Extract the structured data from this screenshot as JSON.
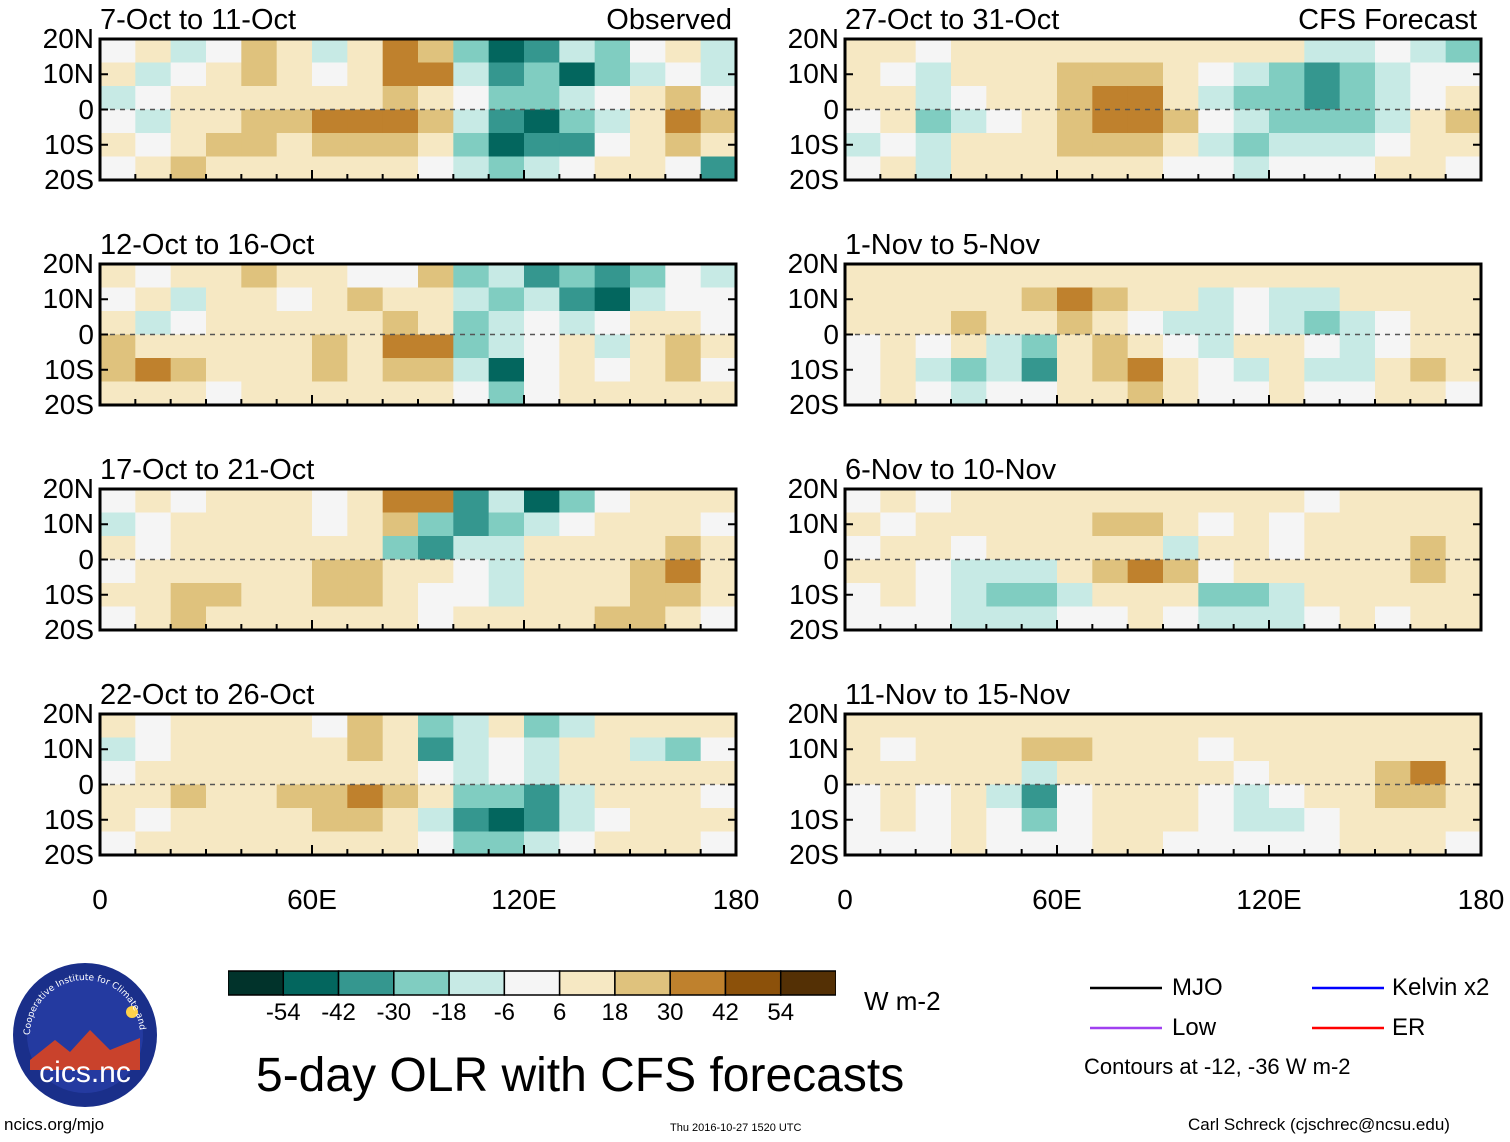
{
  "chart_data": {
    "type": "heatmap",
    "title": "5-day OLR with CFS forecasts",
    "columns": [
      {
        "label": "Observed"
      },
      {
        "label": "CFS Forecast"
      }
    ],
    "panels": [
      {
        "title": "7-Oct to 11-Oct",
        "source": "Observed",
        "cells": [
          [
            0,
            1,
            -1,
            0,
            2,
            1,
            -1,
            1,
            3,
            2,
            -2,
            -4,
            -3,
            -1,
            -2,
            0,
            1,
            -1
          ],
          [
            1,
            -1,
            0,
            1,
            2,
            1,
            0,
            1,
            3,
            3,
            -1,
            -3,
            -2,
            -4,
            -2,
            -1,
            0,
            -1
          ],
          [
            -1,
            0,
            1,
            1,
            1,
            1,
            1,
            1,
            2,
            1,
            0,
            -2,
            -2,
            -1,
            0,
            1,
            2,
            0
          ],
          [
            0,
            -1,
            1,
            1,
            2,
            2,
            3,
            3,
            3,
            2,
            -1,
            -3,
            -4,
            -2,
            -1,
            1,
            3,
            2
          ],
          [
            1,
            0,
            1,
            2,
            2,
            1,
            2,
            2,
            2,
            1,
            -2,
            -4,
            -3,
            -3,
            0,
            1,
            2,
            1
          ],
          [
            0,
            1,
            2,
            1,
            1,
            1,
            1,
            1,
            1,
            0,
            -1,
            -2,
            -1,
            0,
            1,
            1,
            0,
            -3
          ]
        ]
      },
      {
        "title": "12-Oct to 16-Oct",
        "source": "Observed",
        "cells": [
          [
            1,
            0,
            1,
            1,
            2,
            1,
            1,
            0,
            0,
            2,
            -2,
            -1,
            -3,
            -2,
            -3,
            -2,
            0,
            -1
          ],
          [
            0,
            1,
            -1,
            1,
            1,
            0,
            1,
            2,
            1,
            1,
            -1,
            -2,
            -1,
            -3,
            -4,
            -1,
            0,
            0
          ],
          [
            1,
            -1,
            0,
            1,
            1,
            1,
            1,
            1,
            2,
            1,
            -2,
            -1,
            0,
            -1,
            0,
            1,
            1,
            0
          ],
          [
            2,
            1,
            1,
            1,
            1,
            1,
            2,
            1,
            3,
            3,
            -2,
            -1,
            0,
            1,
            -1,
            1,
            2,
            1
          ],
          [
            2,
            3,
            2,
            1,
            1,
            1,
            2,
            1,
            2,
            2,
            -1,
            -4,
            0,
            1,
            0,
            1,
            2,
            0
          ],
          [
            1,
            1,
            1,
            0,
            1,
            1,
            1,
            1,
            1,
            1,
            0,
            -2,
            0,
            1,
            1,
            1,
            1,
            1
          ]
        ]
      },
      {
        "title": "17-Oct to 21-Oct",
        "source": "Observed",
        "cells": [
          [
            0,
            1,
            0,
            1,
            1,
            1,
            0,
            1,
            3,
            3,
            -3,
            -1,
            -4,
            -2,
            0,
            1,
            1,
            1
          ],
          [
            -1,
            0,
            1,
            1,
            1,
            1,
            0,
            1,
            2,
            -2,
            -3,
            -2,
            -1,
            0,
            1,
            1,
            1,
            0
          ],
          [
            1,
            0,
            1,
            1,
            1,
            1,
            1,
            1,
            -2,
            -3,
            -1,
            -1,
            1,
            1,
            1,
            1,
            2,
            1
          ],
          [
            0,
            1,
            1,
            1,
            1,
            1,
            2,
            2,
            1,
            1,
            0,
            -1,
            1,
            1,
            1,
            2,
            3,
            1
          ],
          [
            1,
            1,
            2,
            2,
            1,
            1,
            2,
            2,
            1,
            0,
            0,
            -1,
            1,
            1,
            1,
            2,
            2,
            1
          ],
          [
            0,
            1,
            2,
            1,
            1,
            1,
            1,
            1,
            1,
            0,
            1,
            1,
            1,
            1,
            2,
            2,
            1,
            0
          ]
        ]
      },
      {
        "title": "22-Oct to 26-Oct",
        "source": "Observed",
        "cells": [
          [
            1,
            0,
            1,
            1,
            1,
            1,
            0,
            2,
            1,
            -2,
            -1,
            1,
            -2,
            -1,
            1,
            1,
            1,
            1
          ],
          [
            -1,
            0,
            1,
            1,
            1,
            1,
            1,
            2,
            1,
            -3,
            -1,
            0,
            -1,
            1,
            1,
            -1,
            -2,
            0
          ],
          [
            0,
            1,
            1,
            1,
            1,
            1,
            1,
            1,
            1,
            0,
            -1,
            0,
            -1,
            1,
            1,
            1,
            1,
            1
          ],
          [
            1,
            1,
            2,
            1,
            1,
            2,
            2,
            3,
            2,
            1,
            -2,
            -2,
            -3,
            -1,
            1,
            1,
            1,
            0
          ],
          [
            1,
            0,
            1,
            1,
            1,
            1,
            2,
            2,
            1,
            -1,
            -3,
            -4,
            -3,
            -1,
            0,
            1,
            1,
            1
          ],
          [
            0,
            1,
            1,
            1,
            1,
            1,
            1,
            1,
            1,
            0,
            -2,
            -2,
            -1,
            0,
            1,
            1,
            1,
            0
          ]
        ]
      },
      {
        "title": "27-Oct to 31-Oct",
        "source": "CFS Forecast",
        "cells": [
          [
            1,
            1,
            0,
            1,
            1,
            1,
            1,
            1,
            1,
            1,
            1,
            1,
            1,
            -1,
            -1,
            0,
            -1,
            -2
          ],
          [
            1,
            0,
            -1,
            1,
            1,
            1,
            2,
            2,
            2,
            1,
            0,
            -1,
            -2,
            -3,
            -2,
            -1,
            0,
            0
          ],
          [
            1,
            1,
            -1,
            0,
            1,
            1,
            2,
            3,
            3,
            1,
            -1,
            -2,
            -2,
            -3,
            -2,
            -1,
            0,
            1
          ],
          [
            0,
            1,
            -2,
            -1,
            0,
            1,
            2,
            3,
            3,
            2,
            0,
            -1,
            -2,
            -2,
            -2,
            -1,
            1,
            2
          ],
          [
            -1,
            0,
            -1,
            1,
            1,
            1,
            2,
            2,
            2,
            1,
            -1,
            -2,
            -1,
            -1,
            -1,
            0,
            1,
            1
          ],
          [
            0,
            1,
            -1,
            1,
            1,
            1,
            1,
            1,
            1,
            0,
            0,
            -1,
            0,
            0,
            0,
            1,
            1,
            0
          ]
        ]
      },
      {
        "title": "1-Nov to 5-Nov",
        "source": "CFS Forecast",
        "cells": [
          [
            1,
            1,
            1,
            1,
            1,
            1,
            1,
            1,
            1,
            1,
            1,
            1,
            1,
            1,
            1,
            1,
            1,
            1
          ],
          [
            1,
            1,
            1,
            1,
            1,
            2,
            3,
            2,
            1,
            1,
            -1,
            0,
            -1,
            -1,
            1,
            1,
            1,
            1
          ],
          [
            1,
            1,
            1,
            2,
            1,
            1,
            2,
            1,
            0,
            -1,
            -1,
            0,
            -1,
            -2,
            -1,
            0,
            1,
            1
          ],
          [
            0,
            1,
            0,
            1,
            -1,
            -2,
            1,
            2,
            1,
            0,
            -1,
            1,
            1,
            0,
            -1,
            0,
            1,
            1
          ],
          [
            0,
            1,
            -1,
            -2,
            -1,
            -3,
            1,
            2,
            3,
            1,
            0,
            -1,
            1,
            -1,
            -1,
            1,
            2,
            1
          ],
          [
            0,
            1,
            0,
            -1,
            0,
            0,
            1,
            1,
            2,
            1,
            0,
            0,
            1,
            0,
            0,
            1,
            1,
            0
          ]
        ]
      },
      {
        "title": "6-Nov to 10-Nov",
        "source": "CFS Forecast",
        "cells": [
          [
            0,
            1,
            0,
            1,
            1,
            1,
            1,
            1,
            1,
            1,
            1,
            1,
            1,
            0,
            1,
            1,
            1,
            1
          ],
          [
            1,
            0,
            1,
            1,
            1,
            1,
            1,
            2,
            2,
            1,
            0,
            1,
            0,
            1,
            1,
            1,
            1,
            1
          ],
          [
            0,
            1,
            1,
            0,
            1,
            1,
            1,
            1,
            1,
            -1,
            1,
            1,
            0,
            1,
            1,
            1,
            2,
            1
          ],
          [
            1,
            1,
            0,
            -1,
            -1,
            -1,
            1,
            2,
            3,
            2,
            0,
            1,
            1,
            1,
            1,
            1,
            2,
            1
          ],
          [
            0,
            1,
            0,
            -1,
            -2,
            -2,
            -1,
            1,
            1,
            1,
            -2,
            -2,
            -1,
            1,
            1,
            1,
            1,
            1
          ],
          [
            0,
            0,
            0,
            -1,
            -1,
            -1,
            0,
            0,
            1,
            0,
            -1,
            -1,
            -1,
            0,
            1,
            0,
            1,
            1
          ]
        ]
      },
      {
        "title": "11-Nov to 15-Nov",
        "source": "CFS Forecast",
        "cells": [
          [
            1,
            1,
            1,
            1,
            1,
            1,
            1,
            1,
            1,
            1,
            1,
            1,
            1,
            1,
            1,
            1,
            1,
            1
          ],
          [
            1,
            0,
            1,
            1,
            1,
            2,
            2,
            1,
            1,
            1,
            0,
            1,
            1,
            1,
            1,
            1,
            1,
            1
          ],
          [
            1,
            1,
            1,
            1,
            1,
            -1,
            1,
            1,
            1,
            1,
            1,
            0,
            1,
            1,
            1,
            2,
            3,
            1
          ],
          [
            0,
            1,
            0,
            1,
            -1,
            -3,
            0,
            1,
            1,
            1,
            0,
            -1,
            0,
            1,
            1,
            2,
            2,
            1
          ],
          [
            0,
            1,
            0,
            1,
            0,
            -2,
            0,
            1,
            1,
            1,
            0,
            -1,
            -1,
            0,
            1,
            1,
            1,
            1
          ],
          [
            0,
            0,
            0,
            1,
            0,
            0,
            0,
            1,
            1,
            0,
            0,
            0,
            0,
            0,
            1,
            1,
            1,
            0
          ]
        ]
      }
    ],
    "cell_index_note": "cells[row][col] are colour-class indices (-5..5) into colorbar.colors; rows run 20N to 20S, columns 0 to 180",
    "x_axis": {
      "ticks": [
        "0",
        "60E",
        "120E",
        "180"
      ],
      "range": [
        0,
        180
      ]
    },
    "y_axis": {
      "ticks": [
        "20N",
        "10N",
        "0",
        "10S",
        "20S"
      ],
      "range": [
        -20,
        20
      ]
    },
    "colorbar": {
      "ticks": [
        "-54",
        "-42",
        "-30",
        "-18",
        "-6",
        "6",
        "18",
        "30",
        "42",
        "54"
      ],
      "unit": "W m-2",
      "colors": [
        "#01332b",
        "#03665e",
        "#35978f",
        "#80cdc1",
        "#c7eae5",
        "#f5f5f5",
        "#f6e8c3",
        "#dfc27d",
        "#bf812d",
        "#8c510a",
        "#543005"
      ]
    },
    "contour_legend": {
      "items": [
        {
          "name": "MJO",
          "color": "#000000"
        },
        {
          "name": "Kelvin x2",
          "color": "#0000ff"
        },
        {
          "name": "Low",
          "color": "#a040f0"
        },
        {
          "name": "ER",
          "color": "#ff0000"
        }
      ],
      "note": "Contours at -12, -36 W m-2"
    }
  },
  "footer": {
    "url": "ncics.org/mjo",
    "timestamp": "Thu 2016-10-27 1520 UTC",
    "author": "Carl Schreck (cjschrec@ncsu.edu)"
  },
  "logo": {
    "text": "cics.nc",
    "ring_text": "Cooperative Institute for Climate and Satellites"
  }
}
